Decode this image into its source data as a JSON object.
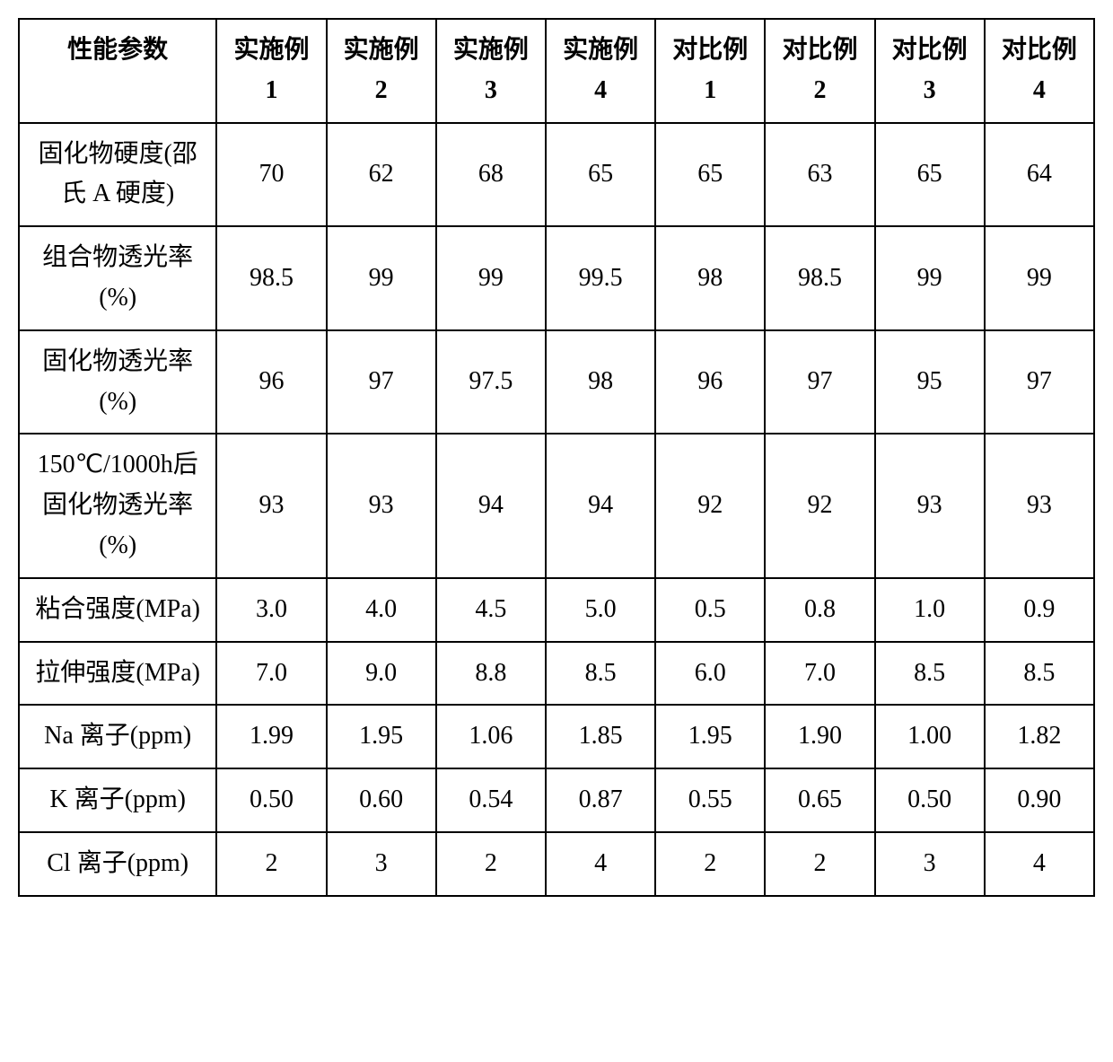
{
  "table": {
    "columns": [
      "性能参数",
      "实施例 1",
      "实施例 2",
      "实施例 3",
      "实施例 4",
      "对比例 1",
      "对比例 2",
      "对比例 3",
      "对比例 4"
    ],
    "rows": [
      {
        "param": "固化物硬度(邵氏 A 硬度)",
        "values": [
          "70",
          "62",
          "68",
          "65",
          "65",
          "63",
          "65",
          "64"
        ]
      },
      {
        "param": "组合物透光率(%)",
        "values": [
          "98.5",
          "99",
          "99",
          "99.5",
          "98",
          "98.5",
          "99",
          "99"
        ]
      },
      {
        "param": "固化物透光率(%)",
        "values": [
          "96",
          "97",
          "97.5",
          "98",
          "96",
          "97",
          "95",
          "97"
        ]
      },
      {
        "param": "150℃/1000h后固化物透光率(%)",
        "values": [
          "93",
          "93",
          "94",
          "94",
          "92",
          "92",
          "93",
          "93"
        ]
      },
      {
        "param": "粘合强度(MPa)",
        "values": [
          "3.0",
          "4.0",
          "4.5",
          "5.0",
          "0.5",
          "0.8",
          "1.0",
          "0.9"
        ]
      },
      {
        "param": "拉伸强度(MPa)",
        "values": [
          "7.0",
          "9.0",
          "8.8",
          "8.5",
          "6.0",
          "7.0",
          "8.5",
          "8.5"
        ]
      },
      {
        "param": "Na 离子(ppm)",
        "values": [
          "1.99",
          "1.95",
          "1.06",
          "1.85",
          "1.95",
          "1.90",
          "1.00",
          "1.82"
        ]
      },
      {
        "param": "K 离子(ppm)",
        "values": [
          "0.50",
          "0.60",
          "0.54",
          "0.87",
          "0.55",
          "0.65",
          "0.50",
          "0.90"
        ]
      },
      {
        "param": "Cl 离子(ppm)",
        "values": [
          "2",
          "3",
          "2",
          "4",
          "2",
          "2",
          "3",
          "4"
        ]
      }
    ],
    "border_color": "#000000",
    "background_color": "#ffffff",
    "text_color": "#000000",
    "font_size": 28,
    "col_widths": {
      "param": 220,
      "data": 122
    }
  }
}
